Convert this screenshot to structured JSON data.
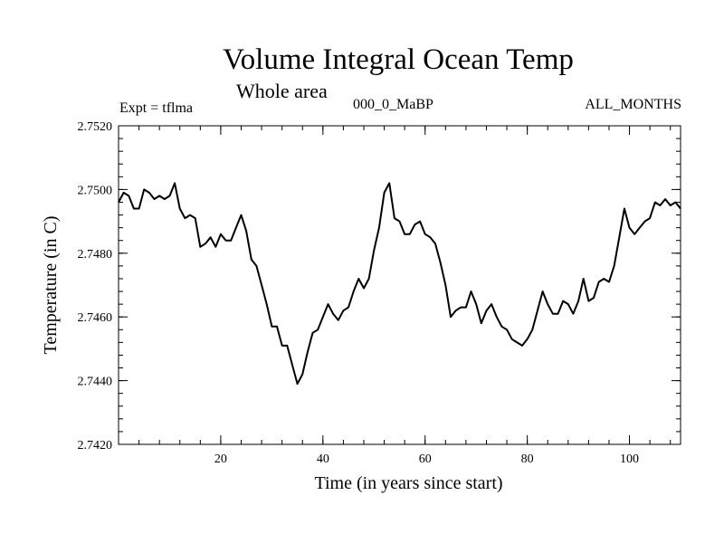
{
  "chart_data": {
    "type": "line",
    "title": "Volume Integral Ocean Temp",
    "subtitle": "Whole area",
    "left_label": "Expt = tflma",
    "center_label": "000_0_MaBP",
    "right_label": "ALL_MONTHS",
    "xlabel": "Time (in years since start)",
    "ylabel": "Temperature (in C)",
    "xlim": [
      0,
      110
    ],
    "ylim": [
      2.742,
      2.752
    ],
    "x_ticks": [
      20,
      40,
      60,
      80,
      100
    ],
    "x_tick_labels": [
      "20",
      "40",
      "60",
      "80",
      "100"
    ],
    "y_ticks": [
      2.742,
      2.744,
      2.746,
      2.748,
      2.75,
      2.752
    ],
    "y_tick_labels": [
      "2.7420",
      "2.7440",
      "2.7460",
      "2.7480",
      "2.7500",
      "2.7520"
    ],
    "x_minor_step": 4,
    "y_minor_step": 0.0004,
    "series": [
      {
        "name": "Volume Integral Ocean Temp",
        "x": [
          0,
          1,
          2,
          3,
          4,
          5,
          6,
          7,
          8,
          9,
          10,
          11,
          12,
          13,
          14,
          15,
          16,
          17,
          18,
          19,
          20,
          21,
          22,
          23,
          24,
          25,
          26,
          27,
          28,
          29,
          30,
          31,
          32,
          33,
          34,
          35,
          36,
          37,
          38,
          39,
          40,
          41,
          42,
          43,
          44,
          45,
          46,
          47,
          48,
          49,
          50,
          51,
          52,
          53,
          54,
          55,
          56,
          57,
          58,
          59,
          60,
          61,
          62,
          63,
          64,
          65,
          66,
          67,
          68,
          69,
          70,
          71,
          72,
          73,
          74,
          75,
          76,
          77,
          78,
          79,
          80,
          81,
          82,
          83,
          84,
          85,
          86,
          87,
          88,
          89,
          90,
          91,
          92,
          93,
          94,
          95,
          96,
          97,
          98,
          99,
          100,
          101,
          102,
          103,
          104,
          105,
          106,
          107,
          108,
          109,
          110
        ],
        "values": [
          2.7496,
          2.7499,
          2.7498,
          2.7494,
          2.7494,
          2.75,
          2.7499,
          2.7497,
          2.7498,
          2.7497,
          2.7498,
          2.7502,
          2.7494,
          2.7491,
          2.7492,
          2.7491,
          2.7482,
          2.7483,
          2.7485,
          2.7482,
          2.7486,
          2.7484,
          2.7484,
          2.7488,
          2.7492,
          2.7487,
          2.7478,
          2.7476,
          2.747,
          2.7464,
          2.7457,
          2.7457,
          2.7451,
          2.7451,
          2.7445,
          2.7439,
          2.7442,
          2.7449,
          2.7455,
          2.7456,
          2.746,
          2.7464,
          2.7461,
          2.7459,
          2.7462,
          2.7463,
          2.7468,
          2.7472,
          2.7469,
          2.7472,
          2.7481,
          2.7488,
          2.7499,
          2.7502,
          2.7491,
          2.749,
          2.7486,
          2.7486,
          2.7489,
          2.749,
          2.7486,
          2.7485,
          2.7483,
          2.7477,
          2.747,
          2.746,
          2.7462,
          2.7463,
          2.7463,
          2.7468,
          2.7464,
          2.7458,
          2.7462,
          2.7464,
          2.746,
          2.7457,
          2.7456,
          2.7453,
          2.7452,
          2.7451,
          2.7453,
          2.7456,
          2.7462,
          2.7468,
          2.7464,
          2.7461,
          2.7461,
          2.7465,
          2.7464,
          2.7461,
          2.7465,
          2.7472,
          2.7465,
          2.7466,
          2.7471,
          2.7472,
          2.7471,
          2.7476,
          2.7485,
          2.7494,
          2.7488,
          2.7486,
          2.7488,
          2.749,
          2.7491,
          2.7496,
          2.7495,
          2.7497,
          2.7495,
          2.7496,
          2.7494
        ]
      }
    ]
  }
}
